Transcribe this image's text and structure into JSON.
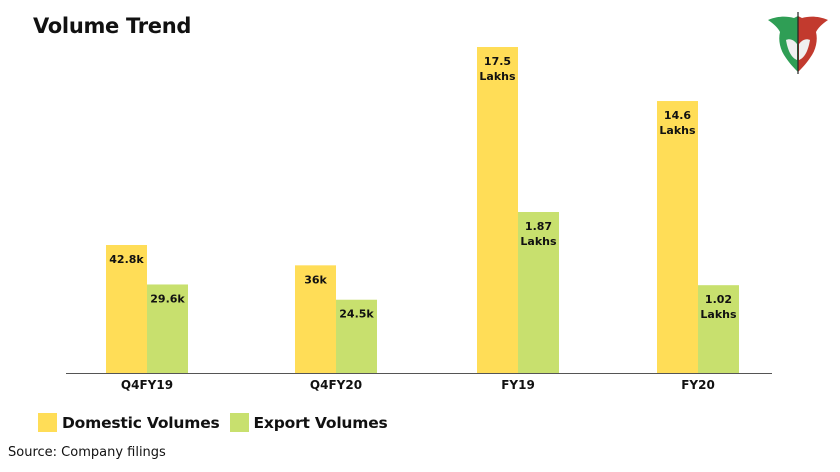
{
  "title": "Volume Trend",
  "logo": {
    "name": "bull-bear-logo"
  },
  "colors": {
    "domestic": "#FFDD57",
    "export": "#C8E06E",
    "axis": "#555555"
  },
  "legend": {
    "domestic_label": "Domestic Volumes",
    "export_label": "Export Volumes"
  },
  "source": "Source: Company filings",
  "chart_data": {
    "type": "bar",
    "title": "Volume Trend",
    "categories": [
      "Q4FY19",
      "Q4FY20",
      "FY19",
      "FY20"
    ],
    "series": [
      {
        "name": "Domestic Volumes",
        "values": [
          42800,
          36000,
          1750000,
          1460000
        ],
        "labels": [
          "42.8k",
          "36k",
          "17.5 Lakhs",
          "14.6 Lakhs"
        ]
      },
      {
        "name": "Export Volumes",
        "values": [
          29600,
          24500,
          187000,
          102000
        ],
        "labels": [
          "29.6k",
          "24.5k",
          "1.87 Lakhs",
          "1.02 Lakhs"
        ]
      }
    ],
    "xlabel": "",
    "ylabel": "",
    "grid": false,
    "legend_position": "bottom-left"
  }
}
